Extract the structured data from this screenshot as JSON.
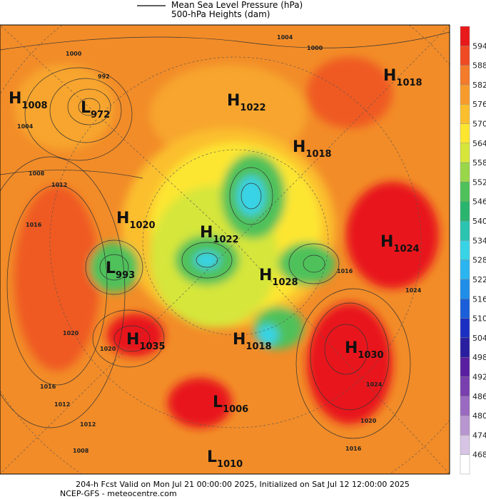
{
  "header": {
    "legend": [
      "Mean Sea Level Pressure (hPa)",
      "500-hPa Heights (dam)"
    ]
  },
  "colorbar": {
    "labels": [
      594,
      588,
      582,
      576,
      570,
      564,
      558,
      552,
      546,
      540,
      534,
      528,
      522,
      516,
      510,
      504,
      498,
      492,
      486,
      480,
      474,
      468
    ]
  },
  "centers": [
    {
      "type": "H",
      "pressure": 1008
    },
    {
      "type": "L",
      "pressure": 972
    },
    {
      "type": "H",
      "pressure": 1022
    },
    {
      "type": "H",
      "pressure": 1018
    },
    {
      "type": "H",
      "pressure": 1018
    },
    {
      "type": "H",
      "pressure": 1020
    },
    {
      "type": "H",
      "pressure": 1022
    },
    {
      "type": "L",
      "pressure": 993
    },
    {
      "type": "H",
      "pressure": 1028
    },
    {
      "type": "H",
      "pressure": 1024
    },
    {
      "type": "H",
      "pressure": 1035
    },
    {
      "type": "H",
      "pressure": 1018
    },
    {
      "type": "H",
      "pressure": 1030
    },
    {
      "type": "L",
      "pressure": 1006
    },
    {
      "type": "L",
      "pressure": 1010
    }
  ],
  "isobar_labels": [
    1004,
    1000,
    992,
    1004,
    1000,
    1008,
    1012,
    1016,
    1016,
    1020,
    1024,
    1020,
    1016,
    1012,
    1012,
    1008,
    1024,
    1020,
    1016
  ],
  "footer": {
    "line1": "204-h Fcst Valid on Mon Jul 21 00:00:00 2025, Initialized on Sat Jul 12 12:00:00 2025",
    "line2": "NCEP-GFS  - meteocentre.com"
  }
}
